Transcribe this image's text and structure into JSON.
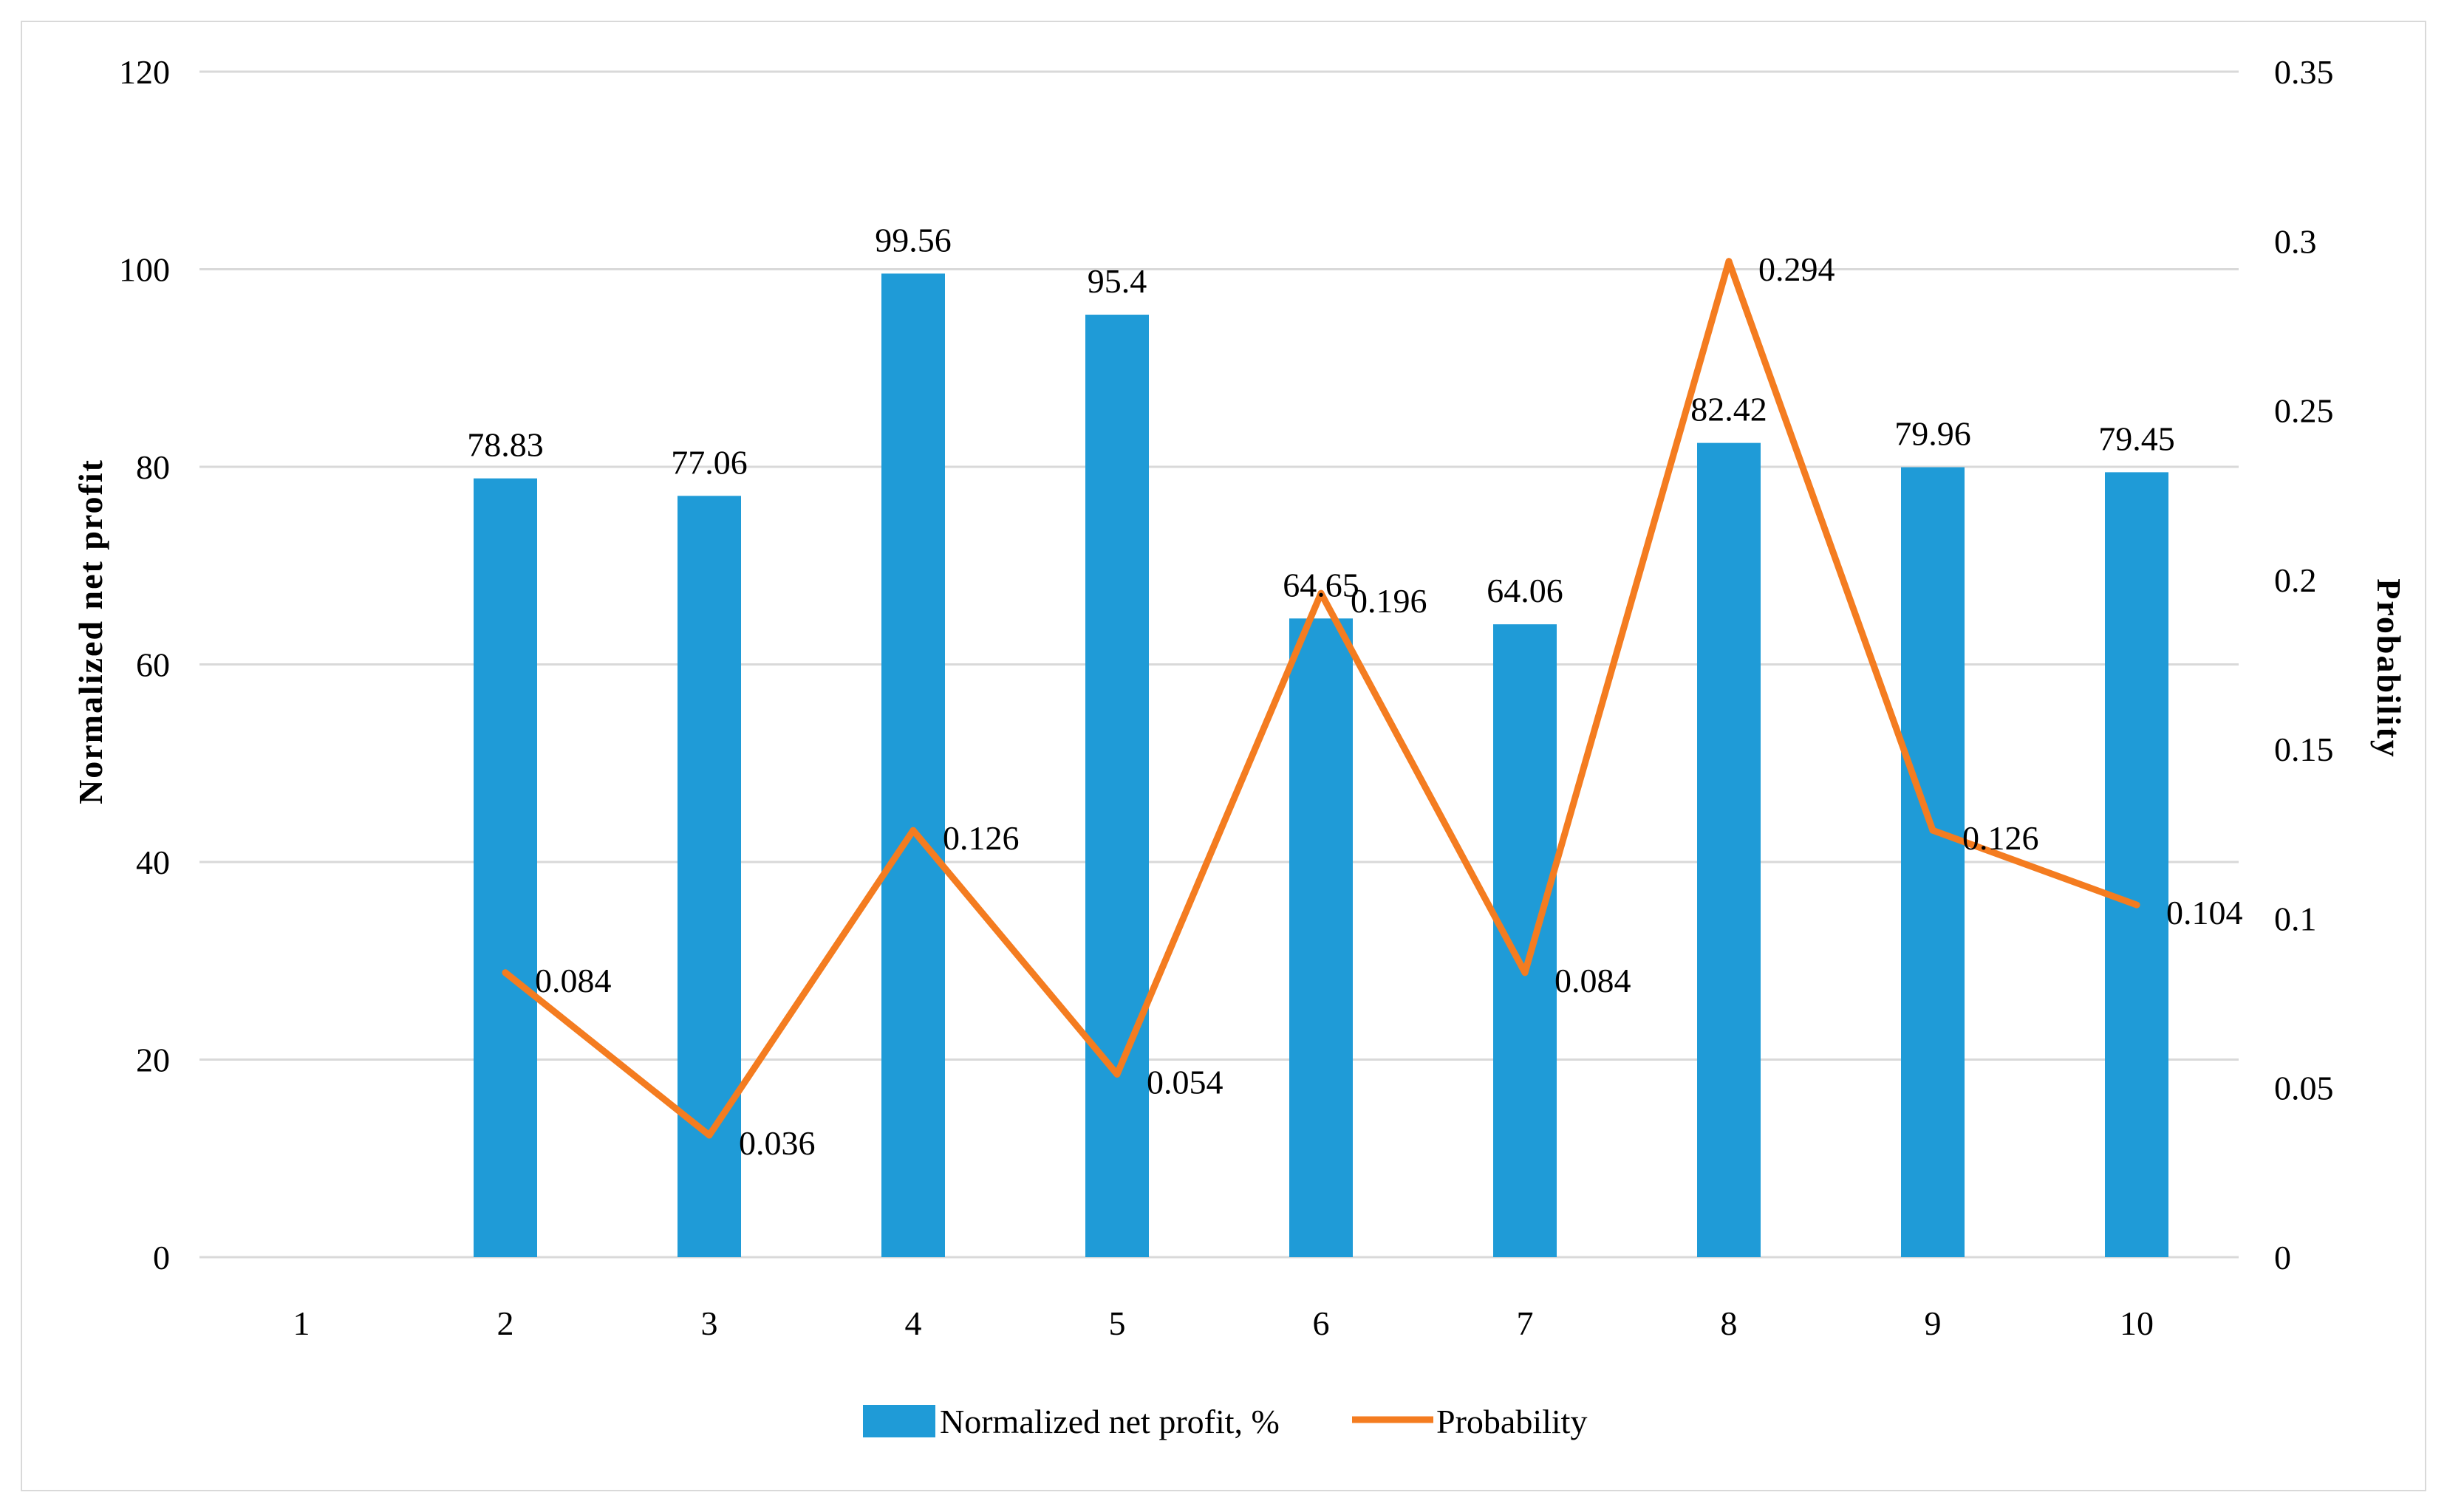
{
  "chart_data": {
    "type": "bar",
    "categories": [
      "1",
      "2",
      "3",
      "4",
      "5",
      "6",
      "7",
      "8",
      "9",
      "10"
    ],
    "series": [
      {
        "name": "Normalized net profit, %",
        "type": "bar",
        "axis": "left",
        "color": "#1f9bd7",
        "values": [
          null,
          78.83,
          77.06,
          99.56,
          95.4,
          64.65,
          64.06,
          82.42,
          79.96,
          79.45
        ],
        "labels": [
          "",
          "78.83",
          "77.06",
          "99.56",
          "95.4",
          "64.65",
          "64.06",
          "82.42",
          "79.96",
          "79.45"
        ]
      },
      {
        "name": "Probability",
        "type": "line",
        "axis": "right",
        "color": "#f47c20",
        "values": [
          null,
          0.084,
          0.036,
          0.126,
          0.054,
          0.196,
          0.084,
          0.294,
          0.126,
          0.104
        ],
        "labels": [
          "",
          "0.084",
          "0.036",
          "0.126",
          "0.054",
          "0.196",
          "0.084",
          "0.294",
          "0.126",
          "0.104"
        ]
      }
    ],
    "y_left": {
      "label": "Normalized net profit",
      "ylim": [
        0,
        120
      ],
      "ticks": [
        "0",
        "20",
        "40",
        "60",
        "80",
        "100",
        "120"
      ]
    },
    "y_right": {
      "label": "Probability",
      "ylim": [
        0,
        0.35
      ],
      "ticks": [
        "0",
        "0.05",
        "0.1",
        "0.15",
        "0.2",
        "0.25",
        "0.3",
        "0.35"
      ]
    },
    "grid": true,
    "legend_position": "bottom"
  }
}
